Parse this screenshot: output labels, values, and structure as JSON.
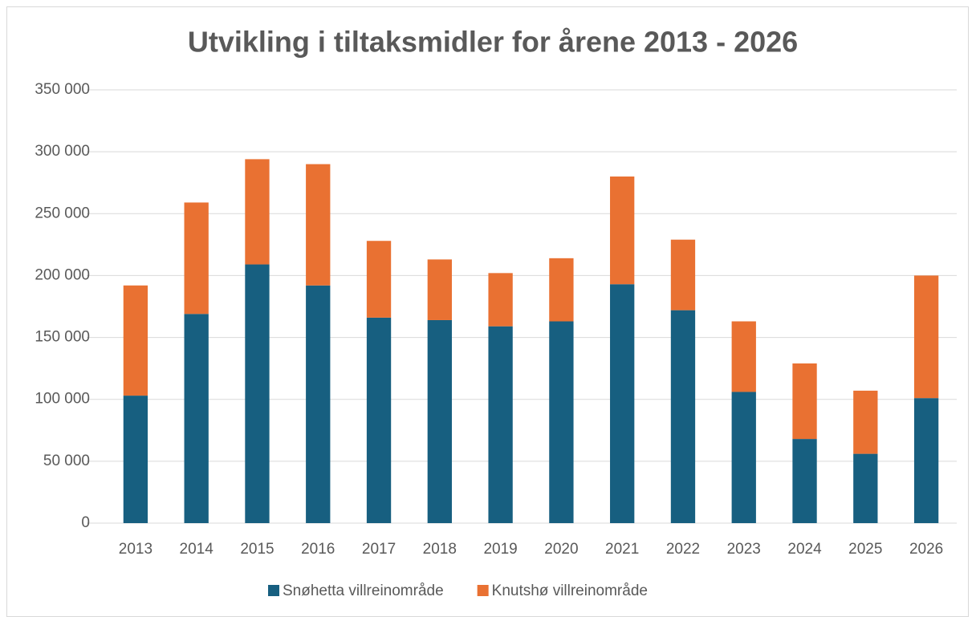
{
  "chart_data": {
    "type": "stacked_bar",
    "title": "Utvikling i tiltaksmidler for årene 2013 - 2026",
    "categories": [
      "2013",
      "2014",
      "2015",
      "2016",
      "2017",
      "2018",
      "2019",
      "2020",
      "2021",
      "2022",
      "2023",
      "2024",
      "2025",
      "2026"
    ],
    "series": [
      {
        "name": "Snøhetta villreinområde",
        "color": "#175f80",
        "values": [
          103000,
          169000,
          209000,
          192000,
          166000,
          164000,
          159000,
          163000,
          193000,
          172000,
          106000,
          68000,
          56000,
          101000
        ]
      },
      {
        "name": "Knutshø villreinområde",
        "color": "#e97132",
        "values": [
          89000,
          90000,
          85000,
          98000,
          62000,
          49000,
          43000,
          51000,
          87000,
          57000,
          57000,
          61000,
          51000,
          99000
        ]
      }
    ],
    "ylim": [
      0,
      350000
    ],
    "yticks": [
      0,
      {
        "value": 50000,
        "label": "50 000"
      },
      {
        "value": 100000,
        "label": "100 000"
      },
      {
        "value": 150000,
        "label": "150 000"
      },
      {
        "value": 200000,
        "label": "200 000"
      },
      {
        "value": 250000,
        "label": "250 000"
      },
      {
        "value": 300000,
        "label": "300 000"
      },
      {
        "value": 350000,
        "label": "350 000"
      }
    ],
    "grid": true,
    "legend": "bottom"
  }
}
